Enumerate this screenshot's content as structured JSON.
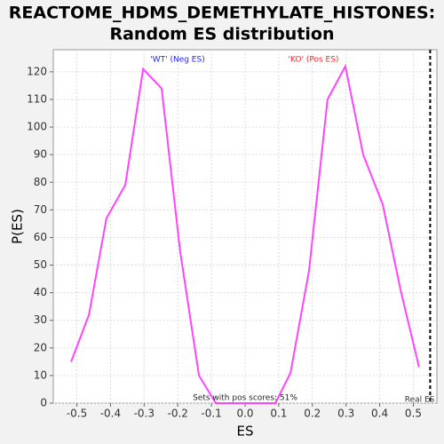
{
  "chart_data": {
    "type": "line",
    "title": [
      "REACTOME_HDMS_DEMETHYLATE_HISTONES:",
      "Random ES distribution"
    ],
    "x_label": "ES",
    "y_label": "P(ES)",
    "series": [
      {
        "name": "P(ES)",
        "color": "#ff44ff",
        "x": [
          -0.517,
          -0.464,
          -0.412,
          -0.356,
          -0.303,
          -0.248,
          -0.193,
          -0.137,
          -0.087,
          0.09,
          0.135,
          0.19,
          0.245,
          0.298,
          0.351,
          0.409,
          0.462,
          0.517
        ],
        "values": [
          15,
          32,
          67,
          79,
          121,
          114,
          55,
          10,
          0,
          0,
          11,
          48,
          110,
          122,
          90,
          72,
          41,
          13
        ]
      }
    ],
    "xlim": [
      -0.57,
      0.57
    ],
    "ylim": [
      0,
      128
    ],
    "xticks": [
      -0.5,
      -0.4,
      -0.3,
      -0.2,
      -0.1,
      {
        "value": 0,
        "label": "0.0"
      },
      0.1,
      0.2,
      0.3,
      0.4,
      0.5
    ],
    "yticks": [
      0,
      10,
      20,
      30,
      40,
      50,
      60,
      70,
      80,
      90,
      100,
      110,
      120
    ],
    "grid": true,
    "neg_label": {
      "text": "'WT' (Neg ES)",
      "color": "#2222ff"
    },
    "pos_label": {
      "text": "'KO' (Pos ES)",
      "color": "#ff2222"
    },
    "footnote": "Sets with pos scores: 51%",
    "real_es": {
      "value": 0.55,
      "label": "Real ES"
    }
  }
}
